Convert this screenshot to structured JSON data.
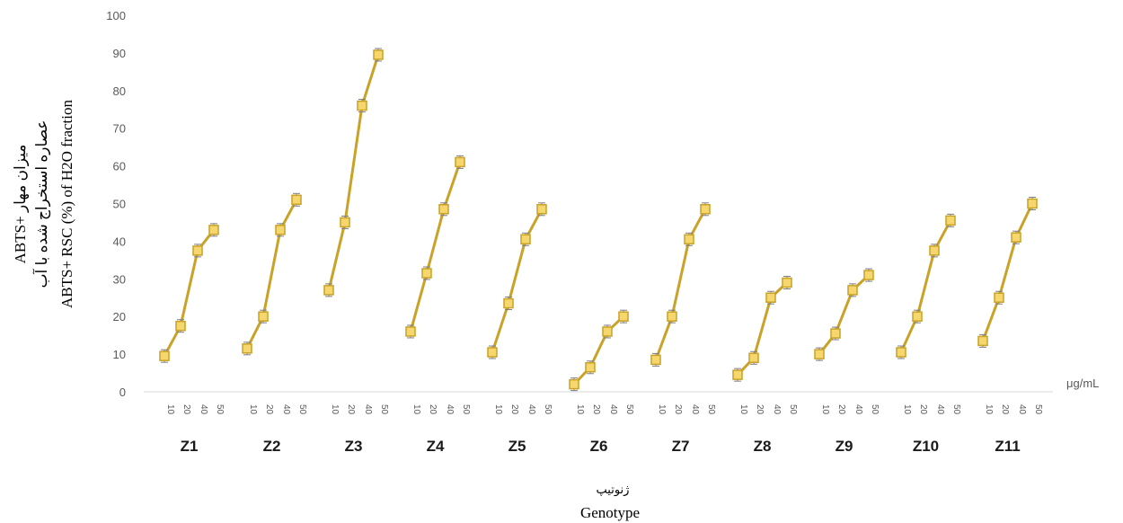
{
  "chart_data": {
    "type": "line",
    "ylabel_lines": [
      "ABTS+ میزان مهار",
      "عصاره استخراج شده با آب",
      "ABTS+ RSC (%) of H2O fraction"
    ],
    "xlabel_fa": "ژنوتیپ",
    "xlabel": "Genotype",
    "unit_label": "μg/mL",
    "ylim": [
      0,
      100
    ],
    "yticks": [
      0,
      10,
      20,
      30,
      40,
      50,
      60,
      70,
      80,
      90,
      100
    ],
    "concentrations": [
      "10",
      "20",
      "40",
      "50"
    ],
    "series_color": "#C9A227",
    "marker_fill": "#F5D76E",
    "groups": [
      {
        "name": "Z1",
        "values": [
          9.5,
          17.5,
          37.5,
          43
        ]
      },
      {
        "name": "Z2",
        "values": [
          11.5,
          20,
          43,
          51
        ]
      },
      {
        "name": "Z3",
        "values": [
          27,
          45,
          76,
          89.5
        ]
      },
      {
        "name": "Z4",
        "values": [
          16,
          31.5,
          48.5,
          61
        ]
      },
      {
        "name": "Z5",
        "values": [
          10.5,
          23.5,
          40.5,
          48.5
        ]
      },
      {
        "name": "Z6",
        "values": [
          2,
          6.5,
          16,
          20
        ]
      },
      {
        "name": "Z7",
        "values": [
          8.5,
          20,
          40.5,
          48.5
        ]
      },
      {
        "name": "Z8",
        "values": [
          4.5,
          9,
          25,
          29
        ]
      },
      {
        "name": "Z9",
        "values": [
          10,
          15.5,
          27,
          31
        ]
      },
      {
        "name": "Z10",
        "values": [
          10.5,
          20,
          37.5,
          45.5
        ]
      },
      {
        "name": "Z11",
        "values": [
          13.5,
          25,
          41,
          50
        ]
      }
    ]
  }
}
